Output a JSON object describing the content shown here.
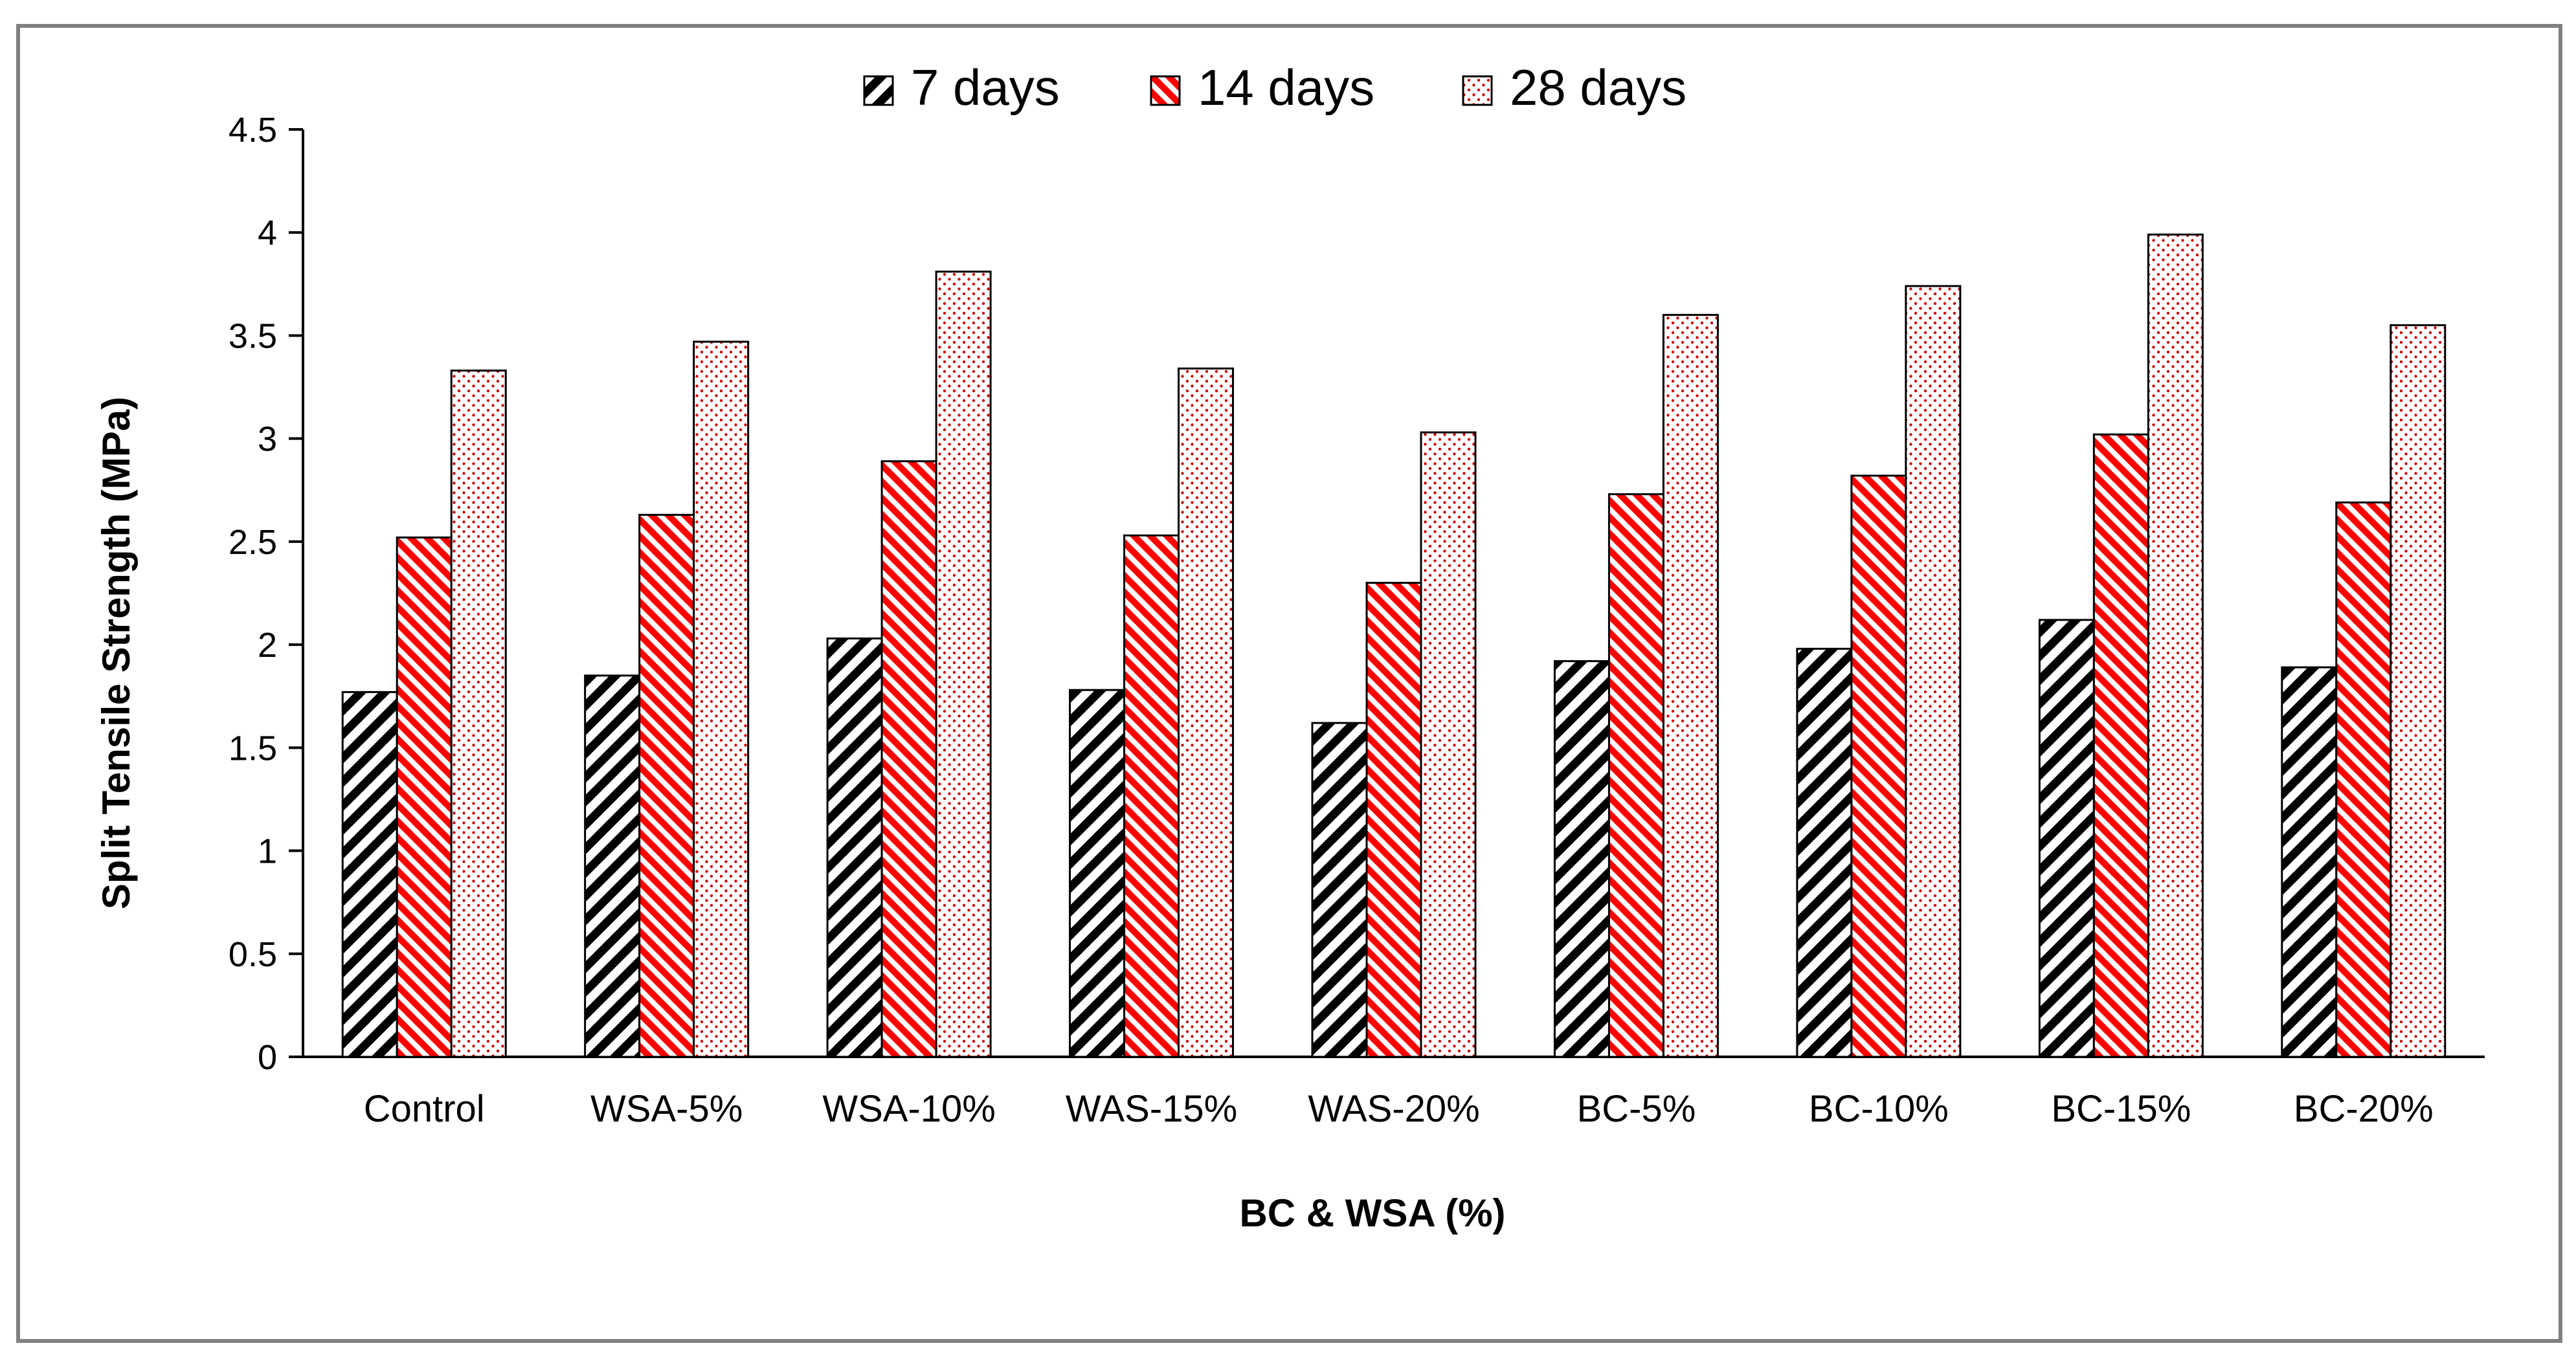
{
  "chart_data": {
    "type": "bar",
    "title": "",
    "xlabel": "BC & WSA (%)",
    "ylabel": "Split Tensile Strength (MPa)",
    "ylim": [
      0,
      4.5
    ],
    "yticks": [
      "0",
      "0.5",
      "1",
      "1.5",
      "2",
      "2.5",
      "3",
      "3.5",
      "4",
      "4.5"
    ],
    "categories": [
      "Control",
      "WSA-5%",
      "WSA-10%",
      "WAS-15%",
      "WAS-20%",
      "BC-5%",
      "BC-10%",
      "BC-15%",
      "BC-20%"
    ],
    "legend_position": "top-center",
    "series": [
      {
        "name": "7 days",
        "pattern": "black-diagonal-stripes",
        "color": "#000000",
        "values": [
          1.77,
          1.85,
          2.03,
          1.78,
          1.62,
          1.92,
          1.98,
          2.12,
          1.89
        ]
      },
      {
        "name": "14 days",
        "pattern": "red-diagonal-stripes",
        "color": "#ff0000",
        "values": [
          2.52,
          2.63,
          2.89,
          2.53,
          2.3,
          2.73,
          2.82,
          3.02,
          2.69
        ]
      },
      {
        "name": "28 days",
        "pattern": "red-dots",
        "color": "#cc0000",
        "values": [
          3.33,
          3.47,
          3.81,
          3.34,
          3.03,
          3.6,
          3.74,
          3.99,
          3.55
        ]
      }
    ]
  }
}
